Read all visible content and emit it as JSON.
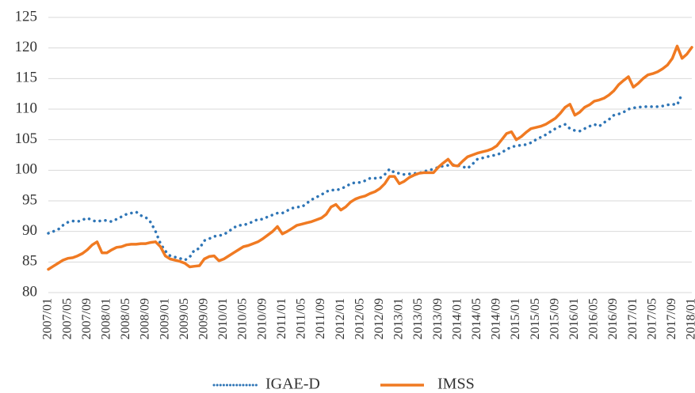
{
  "chart_data": {
    "type": "line",
    "categories": [
      "2007/01",
      null,
      null,
      null,
      "2007/05",
      null,
      null,
      null,
      "2007/09",
      null,
      null,
      null,
      "2008/01",
      null,
      null,
      null,
      "2008/05",
      null,
      null,
      null,
      "2008/09",
      null,
      null,
      null,
      "2009/01",
      null,
      null,
      null,
      "2009/05",
      null,
      null,
      null,
      "2009/09",
      null,
      null,
      null,
      "2010/01",
      null,
      null,
      null,
      "2010/05",
      null,
      null,
      null,
      "2010/09",
      null,
      null,
      null,
      "2011/01",
      null,
      null,
      null,
      "2011/05",
      null,
      null,
      null,
      "2011/09",
      null,
      null,
      null,
      "2012/01",
      null,
      null,
      null,
      "2012/05",
      null,
      null,
      null,
      "2012/09",
      null,
      null,
      null,
      "2013/01",
      null,
      null,
      null,
      "2013/05",
      null,
      null,
      null,
      "2013/09",
      null,
      null,
      null,
      "2014/01",
      null,
      null,
      null,
      "2014/05",
      null,
      null,
      null,
      "2014/09",
      null,
      null,
      null,
      "2015/01",
      null,
      null,
      null,
      "2015/05",
      null,
      null,
      null,
      "2015/09",
      null,
      null,
      null,
      "2016/01",
      null,
      null,
      null,
      "2016/05",
      null,
      null,
      null,
      "2016/09",
      null,
      null,
      null,
      "2017/01",
      null,
      null,
      null,
      "2017/05",
      null,
      null,
      null,
      "2017/09",
      null,
      null,
      null,
      "2018/01"
    ],
    "series": [
      {
        "name": "IGAE-D",
        "color": "#2e75b6",
        "dotted": true,
        "values": [
          89.7,
          90.0,
          90.3,
          91.0,
          91.5,
          91.7,
          91.6,
          91.9,
          92.2,
          91.8,
          91.6,
          91.8,
          91.8,
          91.6,
          92.0,
          92.4,
          92.8,
          93.0,
          93.2,
          92.6,
          92.3,
          91.5,
          90.0,
          88.0,
          86.8,
          86.0,
          85.8,
          85.6,
          85.3,
          85.8,
          87.0,
          87.2,
          88.5,
          88.8,
          89.2,
          89.3,
          89.5,
          90.0,
          90.6,
          91.0,
          91.0,
          91.3,
          91.6,
          92.0,
          92.0,
          92.4,
          92.7,
          93.0,
          93.0,
          93.4,
          93.8,
          94.0,
          94.0,
          94.6,
          95.2,
          95.6,
          96.0,
          96.5,
          96.8,
          96.7,
          97.0,
          97.3,
          97.8,
          98.0,
          98.0,
          98.3,
          98.7,
          98.7,
          98.7,
          99.3,
          100.2,
          99.6,
          99.5,
          99.3,
          99.4,
          99.5,
          99.5,
          99.8,
          100.0,
          100.2,
          100.5,
          100.7,
          100.8,
          100.9,
          100.8,
          100.6,
          100.3,
          101.0,
          101.8,
          102.0,
          102.2,
          102.4,
          102.5,
          102.9,
          103.4,
          103.8,
          104.0,
          104.1,
          104.2,
          104.5,
          105.0,
          105.4,
          105.8,
          106.3,
          106.8,
          107.2,
          107.5,
          106.8,
          106.5,
          106.4,
          106.8,
          107.2,
          107.5,
          107.2,
          107.8,
          108.3,
          109.0,
          109.2,
          109.5,
          110.0,
          110.2,
          110.3,
          110.4,
          110.4,
          110.4,
          110.4,
          110.5,
          110.7,
          110.8,
          110.7,
          112.5,
          null,
          null
        ]
      },
      {
        "name": "IMSS",
        "color": "#f07a22",
        "dotted": false,
        "values": [
          83.8,
          84.3,
          84.8,
          85.3,
          85.6,
          85.7,
          86.0,
          86.4,
          87.0,
          87.8,
          88.3,
          86.5,
          86.5,
          87.0,
          87.4,
          87.5,
          87.8,
          87.9,
          87.9,
          88.0,
          88.0,
          88.2,
          88.3,
          87.5,
          86.0,
          85.5,
          85.3,
          85.1,
          84.8,
          84.2,
          84.3,
          84.4,
          85.5,
          85.9,
          86.0,
          85.2,
          85.5,
          86.0,
          86.5,
          87.0,
          87.5,
          87.7,
          88.0,
          88.3,
          88.8,
          89.4,
          90.0,
          90.8,
          89.6,
          90.0,
          90.5,
          91.0,
          91.2,
          91.4,
          91.6,
          91.9,
          92.2,
          92.8,
          94.0,
          94.4,
          93.5,
          94.0,
          94.8,
          95.3,
          95.6,
          95.8,
          96.2,
          96.5,
          97.0,
          97.8,
          99.0,
          99.0,
          97.8,
          98.2,
          98.8,
          99.2,
          99.5,
          99.6,
          99.6,
          99.6,
          100.5,
          101.2,
          101.8,
          100.8,
          100.7,
          101.5,
          102.2,
          102.5,
          102.8,
          103.0,
          103.2,
          103.5,
          104.0,
          105.0,
          106.0,
          106.3,
          105.0,
          105.5,
          106.2,
          106.8,
          107.0,
          107.2,
          107.5,
          108.0,
          108.5,
          109.3,
          110.3,
          110.8,
          109.0,
          109.5,
          110.3,
          110.7,
          111.3,
          111.5,
          111.8,
          112.3,
          113.0,
          114.0,
          114.7,
          115.3,
          113.6,
          114.2,
          115.0,
          115.6,
          115.8,
          116.1,
          116.6,
          117.2,
          118.3,
          120.3,
          118.3,
          119.0,
          120.1
        ]
      }
    ],
    "ylim": [
      80,
      125
    ],
    "yticks": [
      80,
      85,
      90,
      95,
      100,
      105,
      110,
      115,
      120,
      125
    ],
    "grid": true,
    "legend": "bottom"
  }
}
